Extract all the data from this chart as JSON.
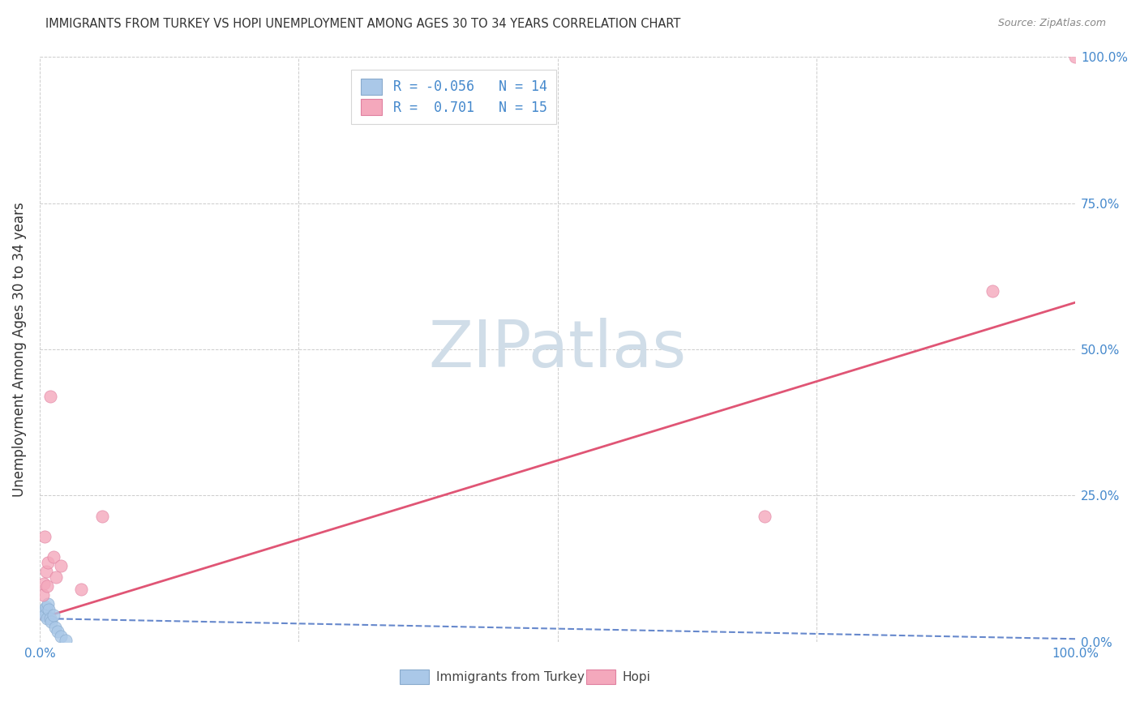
{
  "title": "IMMIGRANTS FROM TURKEY VS HOPI UNEMPLOYMENT AMONG AGES 30 TO 34 YEARS CORRELATION CHART",
  "source": "Source: ZipAtlas.com",
  "xlabel_label": "Immigrants from Turkey",
  "ylabel_label": "Unemployment Among Ages 30 to 34 years",
  "xlim": [
    0.0,
    1.0
  ],
  "ylim": [
    0.0,
    1.0
  ],
  "xtick_positions": [
    0.0,
    0.25,
    0.5,
    0.75,
    1.0
  ],
  "ytick_positions": [
    0.0,
    0.25,
    0.5,
    0.75,
    1.0
  ],
  "xtick_labels": [
    "0.0%",
    "",
    "",
    "",
    "100.0%"
  ],
  "ytick_labels": [
    "0.0%",
    "25.0%",
    "50.0%",
    "75.0%",
    "100.0%"
  ],
  "legend_1_r": "-0.056",
  "legend_1_n": "14",
  "legend_2_r": "0.701",
  "legend_2_n": "15",
  "blue_color": "#aac8e8",
  "pink_color": "#f4a8bc",
  "blue_line_color": "#6688cc",
  "pink_line_color": "#e05575",
  "watermark_text": "ZIPatlas",
  "blue_x": [
    0.003,
    0.004,
    0.005,
    0.006,
    0.007,
    0.008,
    0.009,
    0.01,
    0.011,
    0.013,
    0.015,
    0.017,
    0.02,
    0.025
  ],
  "blue_y": [
    0.05,
    0.055,
    0.045,
    0.06,
    0.04,
    0.065,
    0.055,
    0.04,
    0.035,
    0.045,
    0.025,
    0.018,
    0.01,
    0.002
  ],
  "pink_x": [
    0.003,
    0.004,
    0.005,
    0.006,
    0.007,
    0.008,
    0.01,
    0.013,
    0.016,
    0.02,
    0.04,
    0.06,
    0.7,
    0.92,
    1.0
  ],
  "pink_y": [
    0.08,
    0.1,
    0.18,
    0.12,
    0.095,
    0.135,
    0.42,
    0.145,
    0.11,
    0.13,
    0.09,
    0.215,
    0.215,
    0.6,
    1.0
  ],
  "blue_trend_x": [
    0.0,
    1.0
  ],
  "blue_trend_y": [
    0.04,
    0.005
  ],
  "pink_trend_x": [
    0.0,
    1.0
  ],
  "pink_trend_y": [
    0.04,
    0.58
  ],
  "tick_color": "#4488cc",
  "label_color": "#333333",
  "source_color": "#888888",
  "grid_color": "#cccccc",
  "watermark_color": "#d0dde8"
}
